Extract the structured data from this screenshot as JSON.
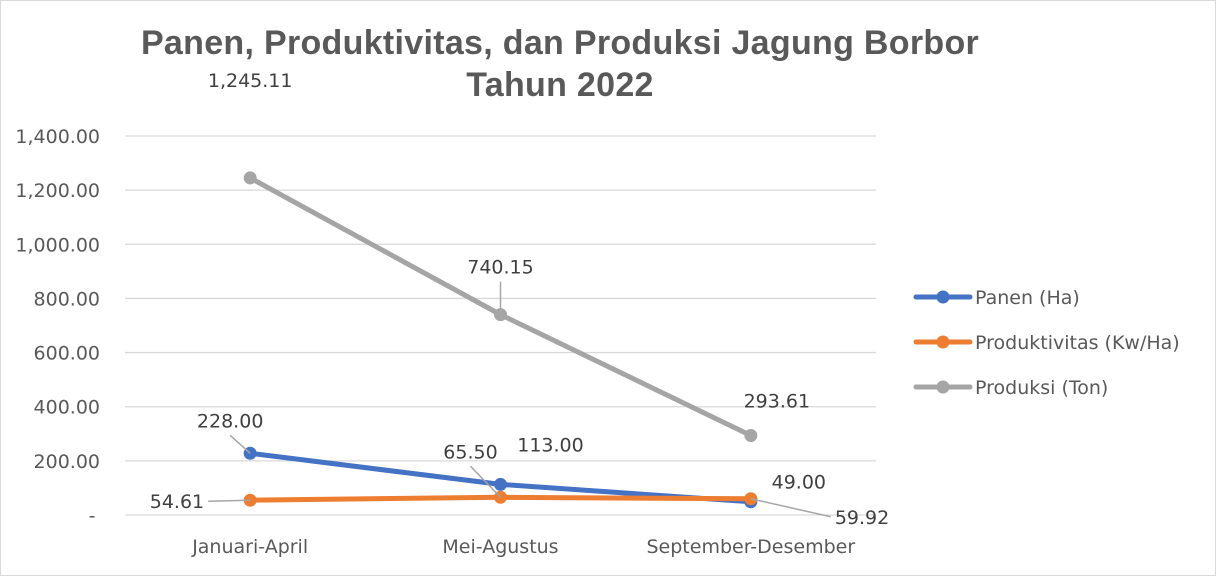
{
  "chart_data": {
    "type": "line",
    "title": "Panen, Produktivitas, dan Produksi Jagung Borbor Tahun 2022",
    "categories": [
      "Januari-April",
      "Mei-Agustus",
      "September-Desember"
    ],
    "series": [
      {
        "name": "Panen (Ha)",
        "color": "#4472c4",
        "values": [
          228.0,
          113.0,
          49.0
        ],
        "labels": [
          "228.00",
          "113.00",
          "49.00"
        ]
      },
      {
        "name": "Produktivitas (Kw/Ha)",
        "color": "#ed7d31",
        "values": [
          54.61,
          65.5,
          59.92
        ],
        "labels": [
          "54.61",
          "65.50",
          "59.92"
        ]
      },
      {
        "name": "Produksi (Ton)",
        "color": "#a5a5a5",
        "values": [
          1245.11,
          740.15,
          293.61
        ],
        "labels": [
          "1,245.11",
          "740.15",
          "293.61"
        ]
      }
    ],
    "yticks": [
      "-",
      "200.00",
      "400.00",
      "600.00",
      "800.00",
      "1,000.00",
      "1,200.00",
      "1,400.00"
    ],
    "ylim": [
      0,
      1400
    ],
    "grid": true,
    "legend": "right"
  }
}
